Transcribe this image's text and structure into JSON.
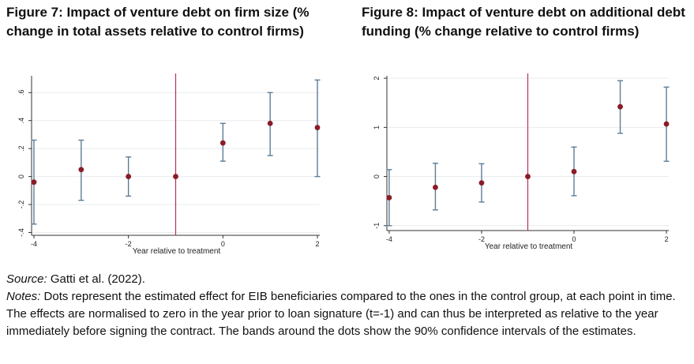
{
  "figure7": {
    "title_bold": "Figure 7: Impact of venture debt on firm size",
    "title_rest": " (% change in total assets relative to control firms)"
  },
  "figure8": {
    "title_bold": "Figure 8: Impact of venture debt on additional debt funding",
    "title_rest": " (% change relative to control firms)"
  },
  "source": {
    "label": "Source:",
    "text": " Gatti et al. (2022)."
  },
  "notes": {
    "label": "Notes:",
    "text": " Dots represent the estimated effect for EIB beneficiaries compared to the ones in the control group, at each point in time. The effects are normalised to zero in the year prior to loan signature (t=-1) and can thus be interpreted as relative to the year immediately before signing the contract. The bands around the dots show the 90% confidence intervals of the estimates."
  },
  "colors": {
    "point": "#8a1c28",
    "ci": "#5e7d95",
    "reference_line": "#b5315a"
  },
  "chart_data": [
    {
      "type": "scatter",
      "subtype": "point-with-confidence-interval",
      "title": "Figure 7: Impact of venture debt on firm size (% change in total assets relative to control firms)",
      "xlabel": "Year relative to treatment",
      "ylabel": "",
      "x": [
        -4,
        -3,
        -2,
        -1,
        0,
        1,
        2
      ],
      "y": [
        -0.04,
        0.05,
        0.0,
        0.0,
        0.24,
        0.38,
        0.35
      ],
      "ci_low": [
        -0.34,
        -0.17,
        -0.14,
        0.0,
        0.11,
        0.15,
        0.0
      ],
      "ci_high": [
        0.26,
        0.26,
        0.14,
        0.0,
        0.38,
        0.6,
        0.69
      ],
      "xlim": [
        -4.05,
        2.05
      ],
      "ylim": [
        -0.42,
        0.72
      ],
      "xticks": [
        -4,
        -2,
        0,
        2
      ],
      "xtick_labels": [
        "-4",
        "-2",
        "0",
        "2"
      ],
      "yticks": [
        -0.4,
        -0.2,
        0.0,
        0.2,
        0.4,
        0.6
      ],
      "ytick_labels": [
        "-.4",
        "-.2",
        "0",
        ".2",
        ".4",
        ".6"
      ],
      "reference_x": -1,
      "grid": true
    },
    {
      "type": "scatter",
      "subtype": "point-with-confidence-interval",
      "title": "Figure 8: Impact of venture debt on additional debt funding (% change relative to control firms)",
      "xlabel": "Year relative to treatment",
      "ylabel": "",
      "x": [
        -4,
        -3,
        -2,
        -1,
        0,
        1,
        2
      ],
      "y": [
        -0.43,
        -0.22,
        -0.13,
        0.0,
        0.1,
        1.42,
        1.07
      ],
      "ci_low": [
        -1.0,
        -0.68,
        -0.52,
        0.0,
        -0.39,
        0.88,
        0.31
      ],
      "ci_high": [
        0.14,
        0.27,
        0.26,
        0.0,
        0.6,
        1.95,
        1.82
      ],
      "xlim": [
        -4.05,
        2.05
      ],
      "ylim": [
        -1.1,
        2.05
      ],
      "xticks": [
        -4,
        -2,
        0,
        2
      ],
      "xtick_labels": [
        "-4",
        "-2",
        "0",
        "2"
      ],
      "yticks": [
        -1,
        0,
        1,
        2
      ],
      "ytick_labels": [
        "-1",
        "0",
        "1",
        "2"
      ],
      "reference_x": -1,
      "grid": true
    }
  ]
}
